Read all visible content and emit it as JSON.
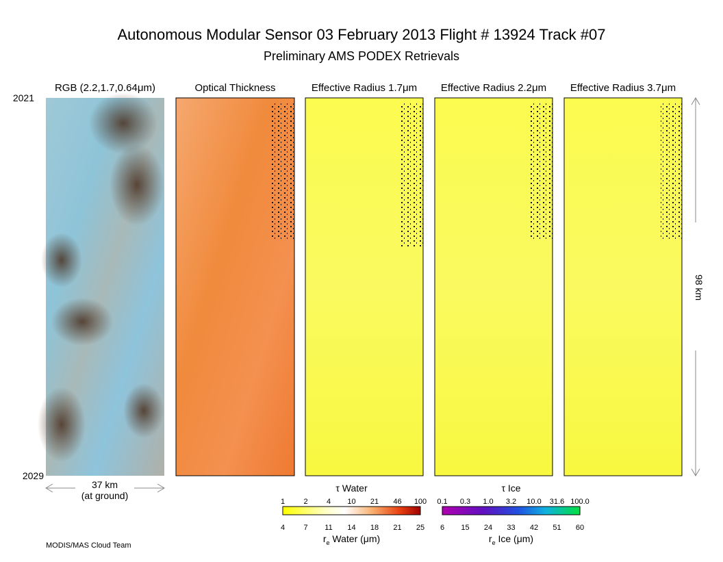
{
  "header": {
    "title": "Autonomous Modular Sensor  03 February 2013  Flight # 13924 Track #07",
    "subtitle": "Preliminary AMS PODEX Retrievals"
  },
  "panels": [
    {
      "title": "RGB (2.2,1.7,0.64μm)"
    },
    {
      "title": "Optical Thickness"
    },
    {
      "title": "Effective Radius 1.7μm"
    },
    {
      "title": "Effective Radius 2.2μm"
    },
    {
      "title": "Effective Radius 3.7μm"
    }
  ],
  "time": {
    "start": "2021",
    "end": "2029"
  },
  "scale": {
    "width": "37 km",
    "width_note": "(at ground)",
    "length": "98 km"
  },
  "colorbars": [
    {
      "title": "τ Water",
      "top_ticks": [
        "1",
        "2",
        "4",
        "10",
        "21",
        "46",
        "100"
      ],
      "bottom_ticks": [
        "4",
        "7",
        "11",
        "14",
        "18",
        "21",
        "25"
      ],
      "label_symbol": "r",
      "label_subscript": "e",
      "label_text": "Water (μm)"
    },
    {
      "title": "τ Ice",
      "top_ticks": [
        "0.1",
        "0.3",
        "1.0",
        "3.2",
        "10.0",
        "31.6",
        "100.0"
      ],
      "bottom_ticks": [
        "6",
        "15",
        "24",
        "33",
        "42",
        "51",
        "60"
      ],
      "label_symbol": "r",
      "label_subscript": "e",
      "label_text": "Ice (μm)"
    }
  ],
  "footer": "MODIS/MAS Cloud Team"
}
